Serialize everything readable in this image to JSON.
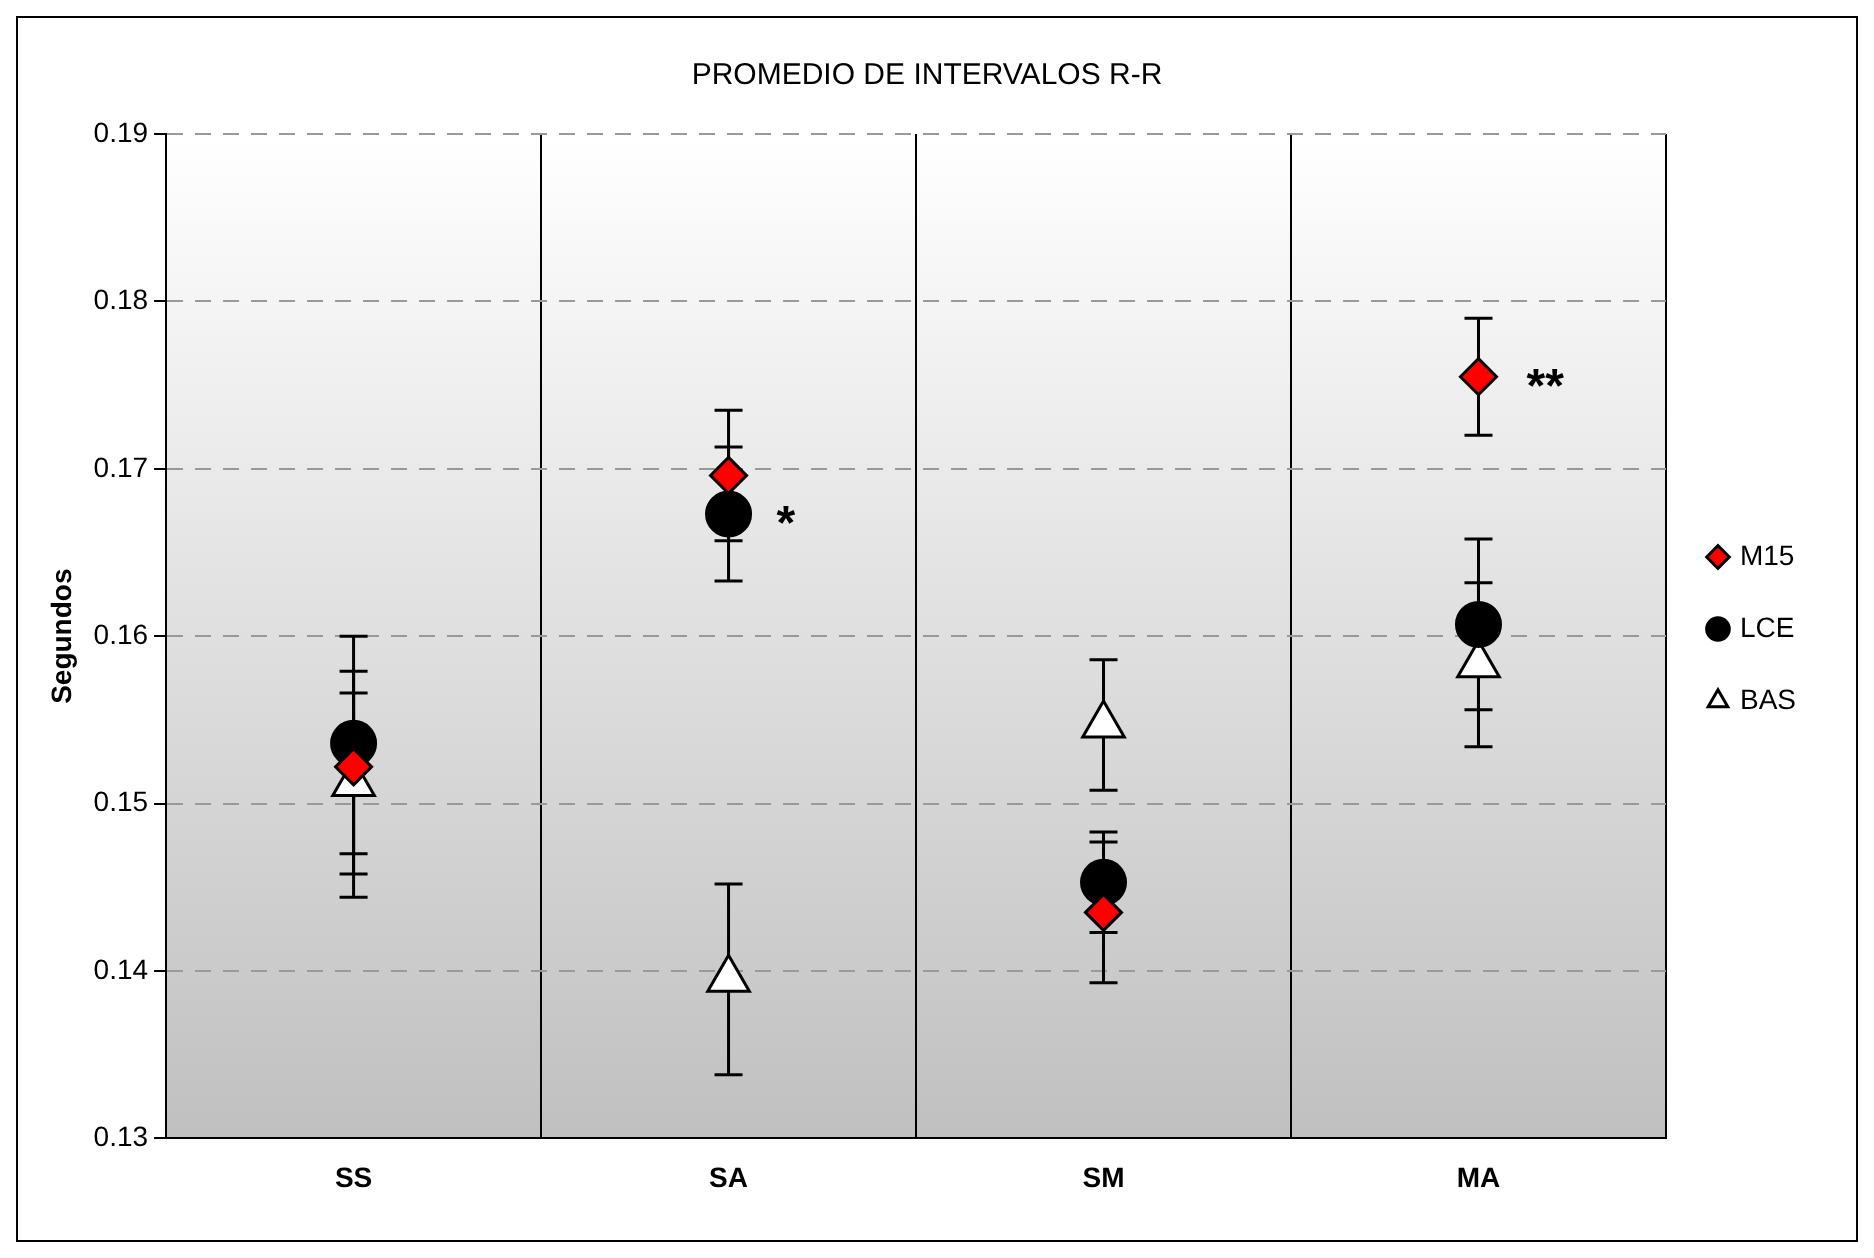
{
  "chart_data": {
    "type": "scatter",
    "title": "PROMEDIO DE INTERVALOS R-R",
    "ylabel": "Segundos",
    "categories": [
      "SS",
      "SA",
      "SM",
      "MA"
    ],
    "series": [
      {
        "name": "M15",
        "color": "#ff0000",
        "marker": "diamond",
        "values": [
          0.1522,
          0.1696,
          0.1435,
          0.1755
        ],
        "errors": [
          0.0078,
          0.0039,
          0.0042,
          0.0035
        ]
      },
      {
        "name": "LCE",
        "color": "#000000",
        "marker": "circle",
        "values": [
          0.1536,
          0.1673,
          0.1453,
          0.1607
        ],
        "errors": [
          [
            0.147,
            0.1579
          ],
          0.004,
          0.003,
          0.0051
        ]
      },
      {
        "name": "BAS",
        "color": "#ffffff",
        "marker": "triangle",
        "values": [
          0.1512,
          0.1395,
          0.1547,
          0.1583
        ],
        "errors": [
          0.0054,
          0.0057,
          0.0039,
          0.0049
        ]
      }
    ],
    "ylim": [
      0.13,
      0.19
    ],
    "yticks": [
      0.13,
      0.14,
      0.15,
      0.16,
      0.17,
      0.18,
      0.19
    ],
    "grid": true,
    "legend": "right",
    "annotations": [
      {
        "text": "*",
        "x": "SA",
        "y": 0.1673
      },
      {
        "text": "**",
        "x": "MA",
        "y": 0.1755
      }
    ]
  }
}
